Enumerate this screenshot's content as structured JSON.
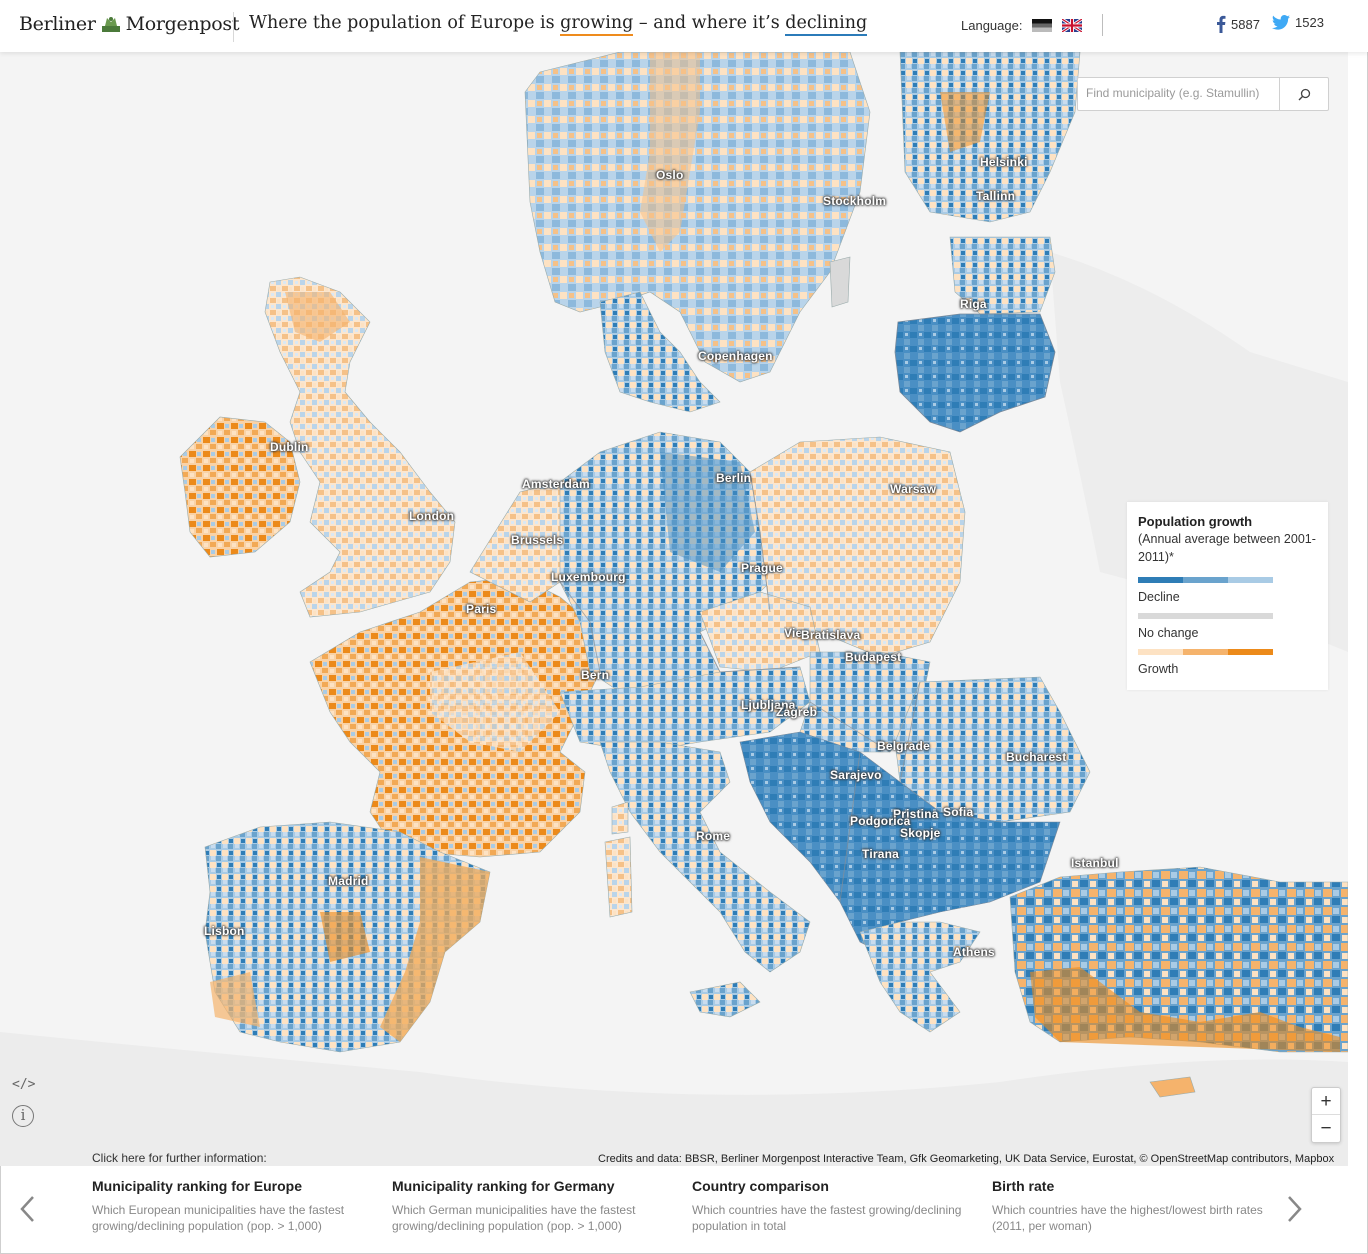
{
  "header": {
    "logo_left": "Berliner",
    "logo_right": "Morgenpost",
    "headline_pre": "Where the population of Europe is ",
    "headline_growing": "growing",
    "headline_mid": " – and where it’s ",
    "headline_declining": "declining",
    "language_label": "Language:",
    "facebook_count": "5887",
    "twitter_count": "1523"
  },
  "search": {
    "placeholder": "Find municipality (e.g. Stamullin)"
  },
  "legend": {
    "title": "Population growth",
    "subtitle": "(Annual average between 2001-2011)*",
    "decline_label": "Decline",
    "nochange_label": "No change",
    "growth_label": "Growth",
    "decline_colors": [
      "#2f7db6",
      "#6aa3cd",
      "#a9cbe5"
    ],
    "nochange_color": "#d9d9d9",
    "growth_colors": [
      "#fde2c3",
      "#f5b36c",
      "#ec8a1a"
    ]
  },
  "cities": [
    "Oslo",
    "Stockholm",
    "Helsinki",
    "Tallinn",
    "Riga",
    "Copenhagen",
    "Dublin",
    "London",
    "Amsterdam",
    "Berlin",
    "Warsaw",
    "Brussels",
    "Luxembourg",
    "Prague",
    "Paris",
    "Vienna",
    "Bratislava",
    "Budapest",
    "Bern",
    "Ljubljana",
    "Zagreb",
    "Belgrade",
    "Bucharest",
    "Sarajevo",
    "Pristina",
    "Sofia",
    "Podgorica",
    "Skopje",
    "Tirana",
    "Istanbul",
    "Rome",
    "Madrid",
    "Lisbon",
    "Athens"
  ],
  "controls": {
    "zoom_in": "+",
    "zoom_out": "−",
    "embed": "</>",
    "info": "i"
  },
  "credits": "Credits and data: BBSR, Berliner Morgenpost Interactive Team, Gfk Geomarketing, UK Data Service, Eurostat, © OpenStreetMap contributors, Mapbox",
  "footer": {
    "further_info": "Click here for further information:",
    "cards": [
      {
        "title": "Municipality ranking for Europe",
        "desc": "Which European municipalities have the fastest growing/declining population (pop. > 1,000)"
      },
      {
        "title": "Municipality ranking for Germany",
        "desc": "Which German municipalities have the fastest growing/declining population (pop. > 1,000)"
      },
      {
        "title": "Country comparison",
        "desc": "Which countries have the fastest growing/declining population in total"
      },
      {
        "title": "Birth rate",
        "desc": "Which countries have the highest/lowest birth rates (2011, per woman)"
      }
    ]
  }
}
